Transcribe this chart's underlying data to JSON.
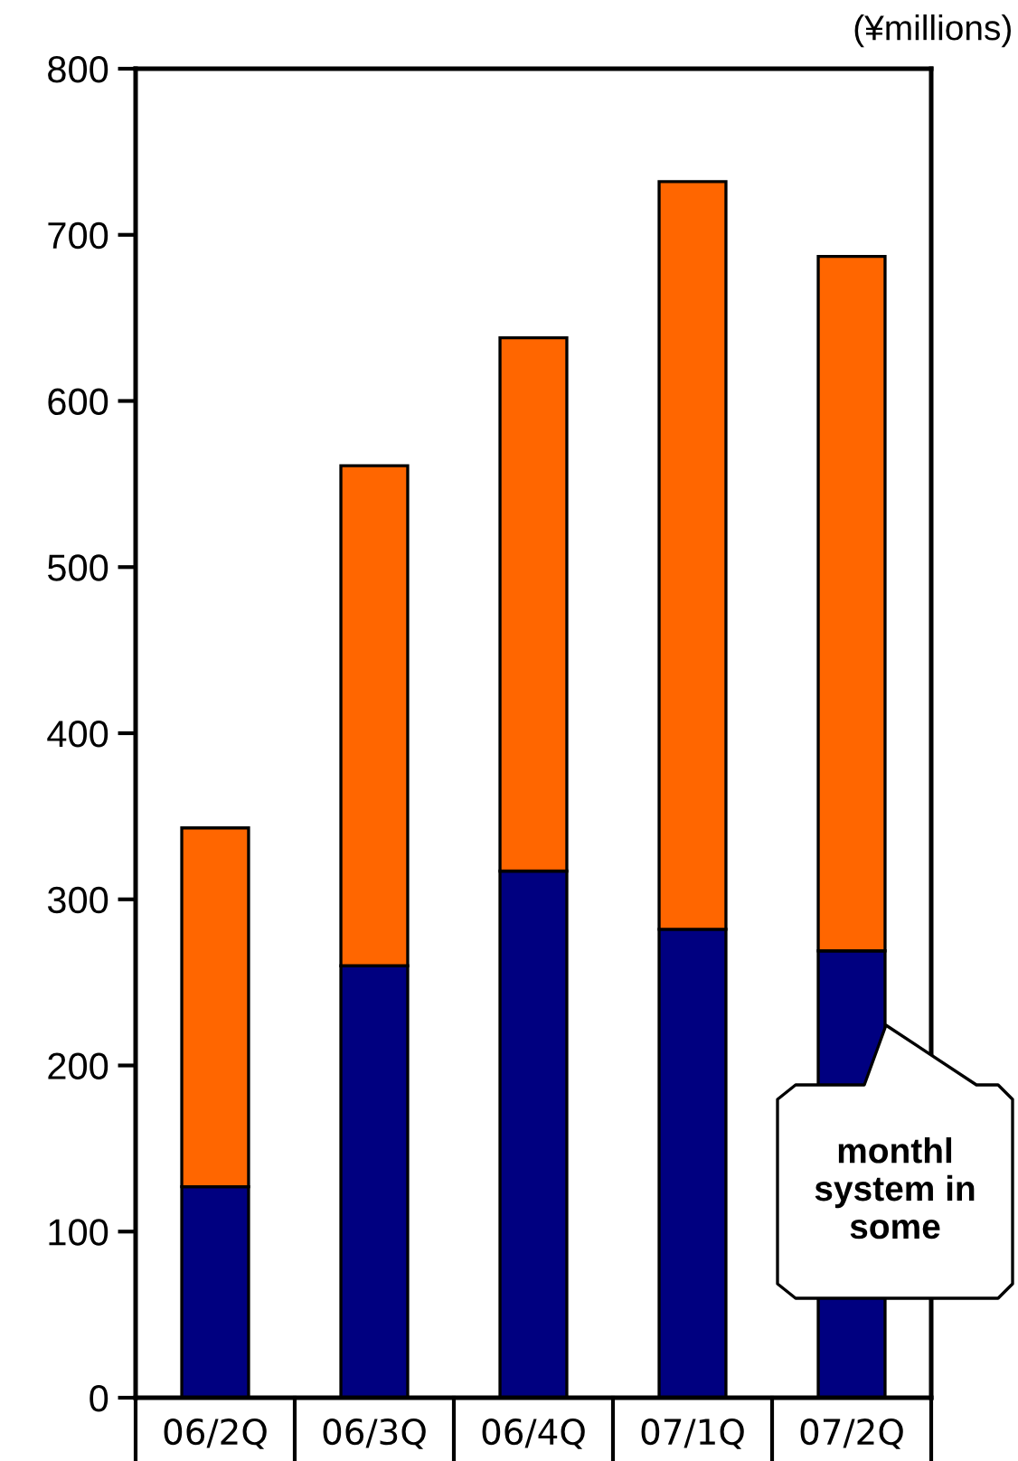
{
  "chart_data": {
    "type": "bar",
    "stacked": true,
    "ylabel": "(¥millions)",
    "categories": [
      "06/2Q",
      "06/3Q",
      "06/4Q",
      "07/1Q",
      "07/2Q"
    ],
    "series": [
      {
        "color": "#000080",
        "values": [
          127,
          260,
          317,
          282,
          269
        ]
      },
      {
        "color": "#ff6600",
        "values": [
          216,
          301,
          321,
          450,
          418
        ]
      }
    ],
    "ylim": [
      0,
      800
    ],
    "yticks": [
      0,
      100,
      200,
      300,
      400,
      500,
      600,
      700,
      800
    ],
    "grid": false,
    "legend": false,
    "annotations": [
      "monthl\nsystem in\nsome"
    ]
  }
}
